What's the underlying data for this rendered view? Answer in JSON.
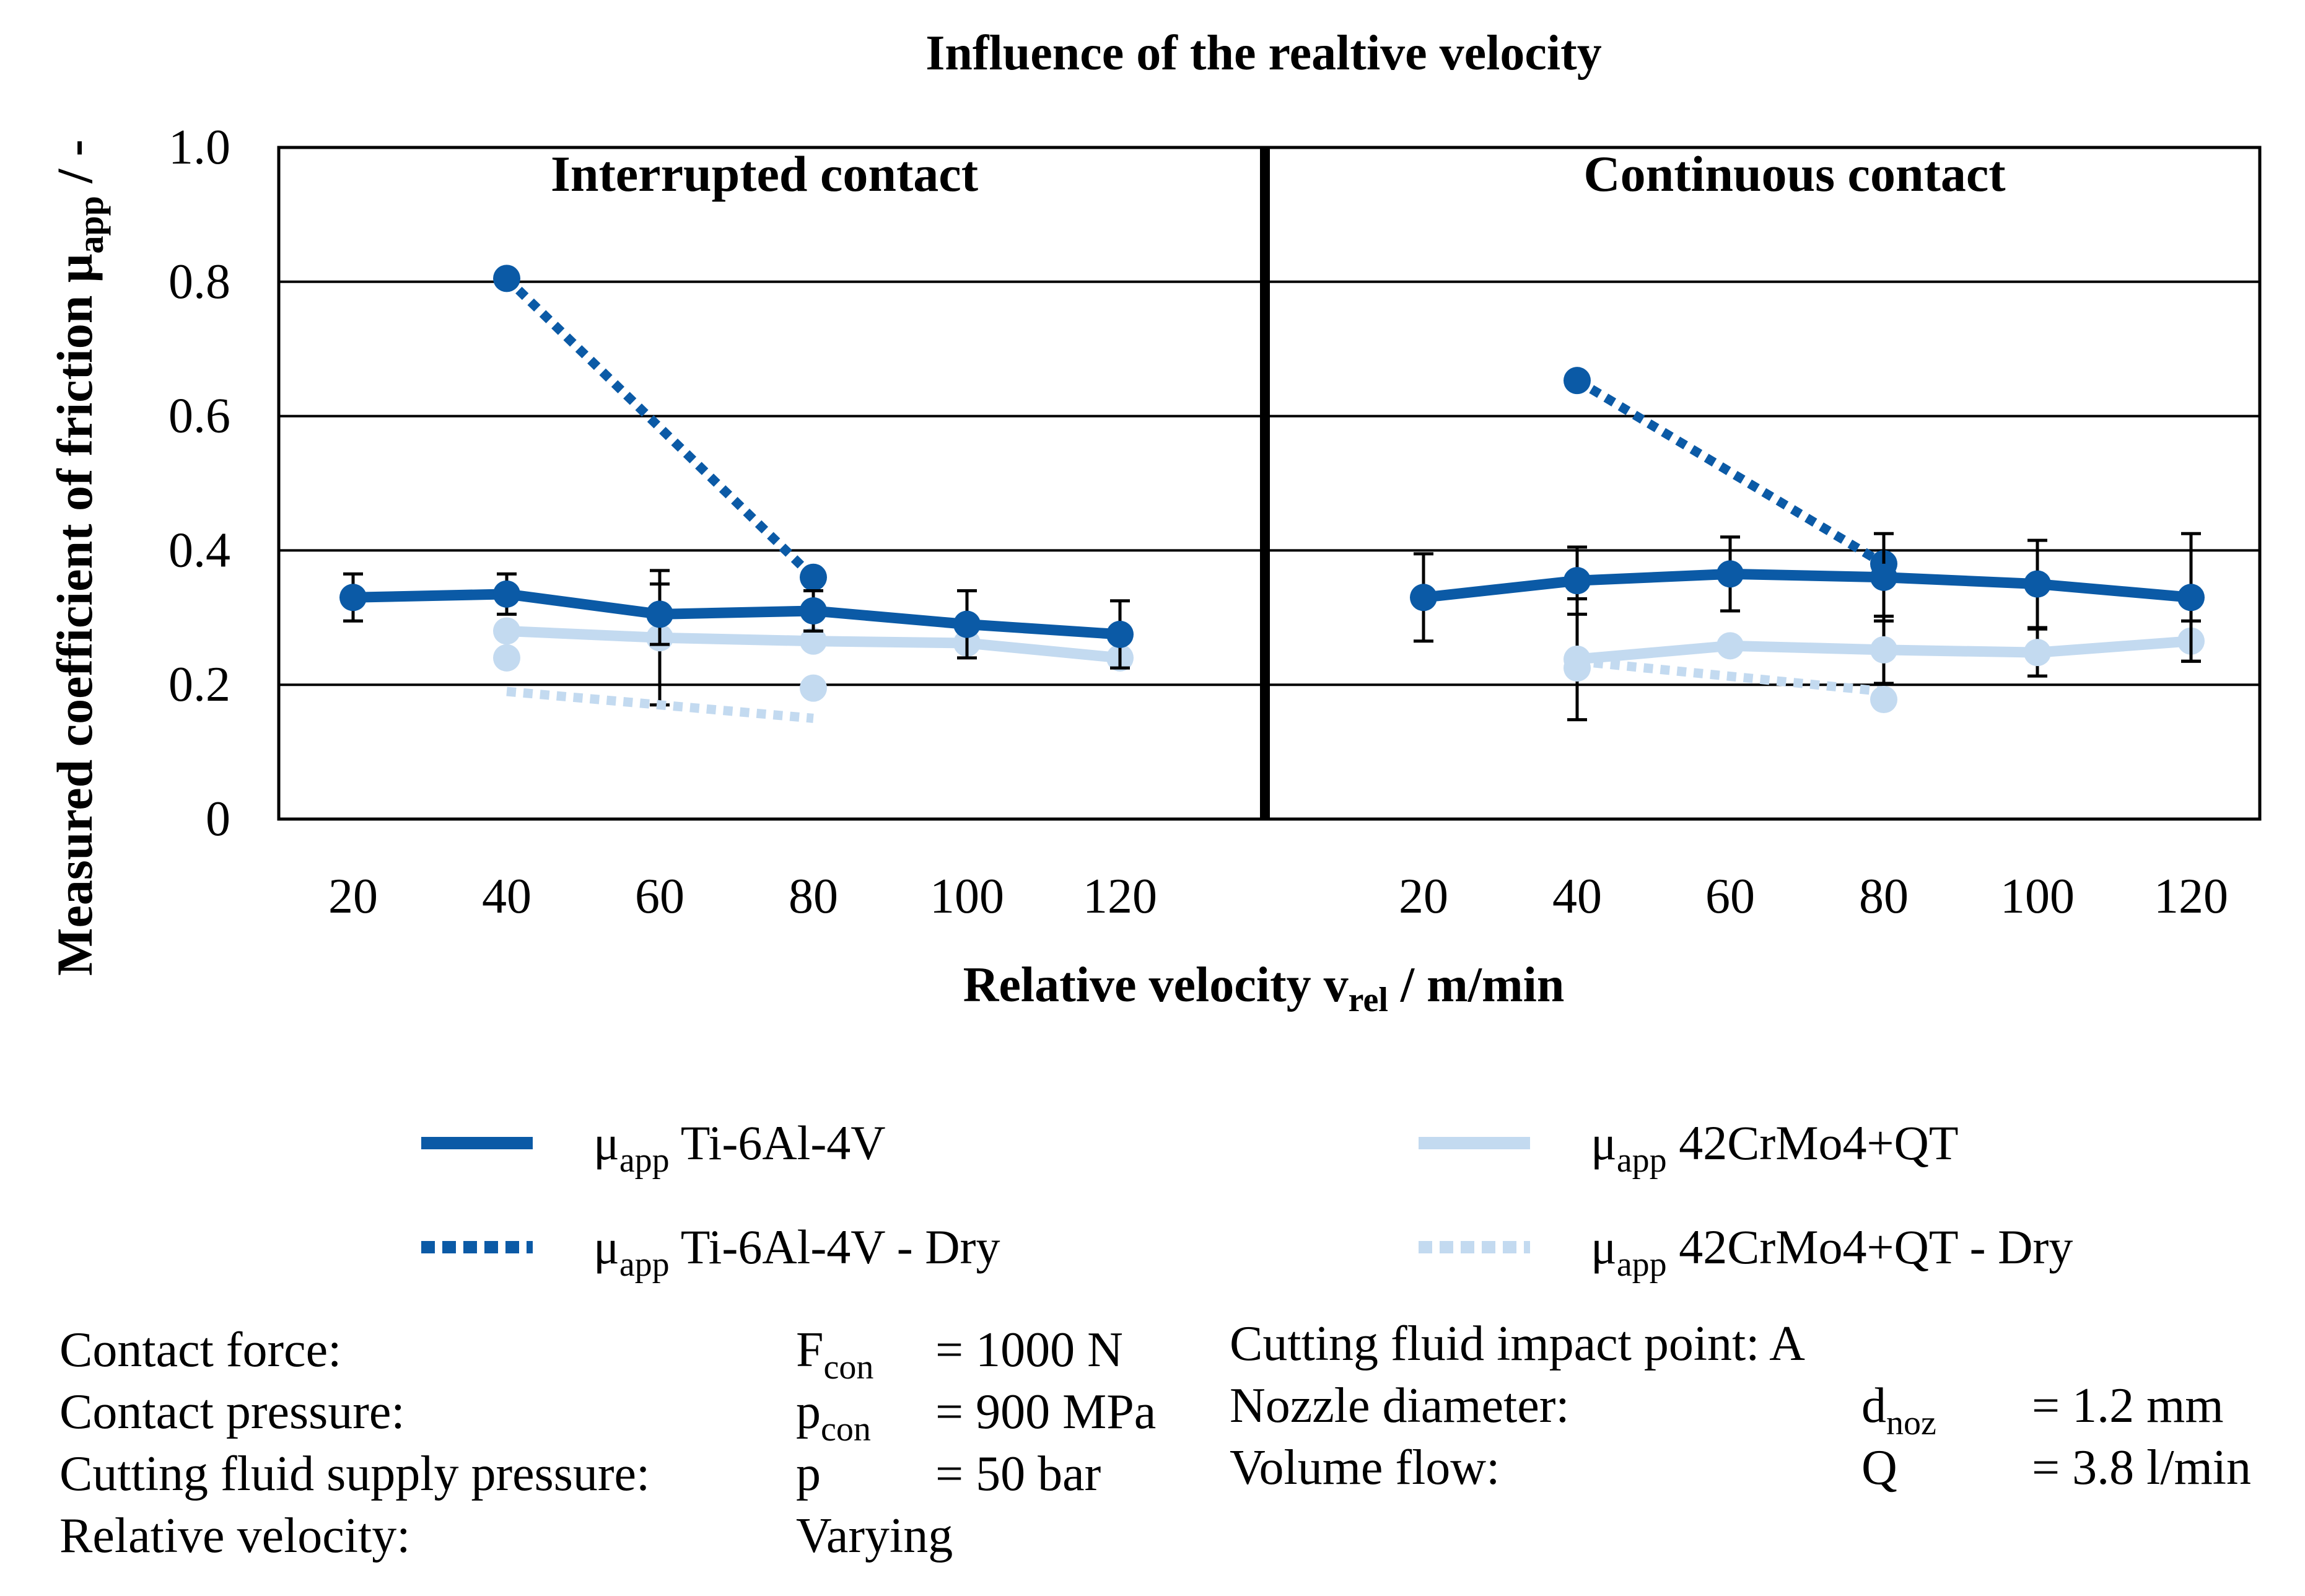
{
  "chart_data": {
    "type": "line",
    "title": "Influence of the realtive velocity",
    "ylabel": "Measured coefficient of friction μ",
    "ylabel_sub": "app",
    "ylabel_suffix": " / -",
    "xlabel": "Relative velocity v",
    "xlabel_sub": "rel",
    "xlabel_suffix": " / m/min",
    "ylim": [
      0,
      1.0
    ],
    "yticks": [
      "0",
      "0.2",
      "0.4",
      "0.6",
      "0.8",
      "1.0"
    ],
    "grid": true,
    "panels": [
      {
        "title": "Interrupted contact",
        "categories": [
          "20",
          "40",
          "60",
          "80",
          "100",
          "120"
        ],
        "series": [
          {
            "name": "μapp Ti-6Al-4V",
            "values": [
              0.33,
              0.335,
              0.305,
              0.31,
              0.29,
              0.275
            ],
            "err": [
              0.035,
              0.03,
              0.045,
              0.03,
              0.05,
              0.05
            ]
          },
          {
            "name": "μapp 42CrMo4+QT",
            "values": [
              null,
              0.28,
              0.27,
              0.265,
              0.262,
              0.24
            ],
            "err": [
              null,
              null,
              0.1,
              null,
              null,
              null
            ]
          },
          {
            "name": "μapp Ti-6Al-4V - Dry",
            "values": [
              null,
              0.805,
              null,
              0.36,
              null,
              null
            ],
            "err": [
              null,
              null,
              null,
              null,
              null,
              null
            ]
          },
          {
            "name": "μapp 42CrMo4+QT - Dry",
            "values": [
              null,
              0.19,
              null,
              0.15,
              null,
              null
            ],
            "points": [
              null,
              0.24,
              null,
              0.195,
              null,
              null
            ],
            "err": [
              null,
              null,
              null,
              null,
              null,
              null
            ]
          }
        ]
      },
      {
        "title": "Continuous contact",
        "categories": [
          "20",
          "40",
          "60",
          "80",
          "100",
          "120"
        ],
        "series": [
          {
            "name": "μapp Ti-6Al-4V",
            "values": [
              0.33,
              0.355,
              0.365,
              0.36,
              0.35,
              0.33
            ],
            "err": [
              0.065,
              0.05,
              0.055,
              0.065,
              0.065,
              0.095
            ]
          },
          {
            "name": "μapp 42CrMo4+QT",
            "values": [
              null,
              0.238,
              0.258,
              0.252,
              0.248,
              0.265
            ],
            "err": [
              null,
              0.09,
              null,
              0.05,
              0.035,
              0.03
            ]
          },
          {
            "name": "μapp Ti-6Al-4V - Dry",
            "values": [
              null,
              0.653,
              null,
              0.38,
              null,
              null
            ],
            "err": [
              null,
              null,
              null,
              null,
              null,
              null
            ]
          },
          {
            "name": "μapp 42CrMo4+QT - Dry",
            "values": [
              null,
              0.235,
              null,
              0.19,
              null,
              null
            ],
            "points": [
              null,
              0.225,
              null,
              0.178,
              null,
              null
            ],
            "err": [
              null,
              null,
              null,
              null,
              null,
              null
            ]
          }
        ]
      }
    ]
  },
  "colors": {
    "dark_blue": "#0b5aa6",
    "light_blue": "#c3daf0",
    "axis": "#000000"
  },
  "legend": [
    {
      "symbol": "μ",
      "sub": "app",
      "text": " Ti-6Al-4V",
      "style": "solid-dark"
    },
    {
      "symbol": "μ",
      "sub": "app",
      "text": " Ti-6Al-4V - Dry",
      "style": "dotted-dark"
    },
    {
      "symbol": "μ",
      "sub": "app",
      "text": " 42CrMo4+QT",
      "style": "solid-light"
    },
    {
      "symbol": "μ",
      "sub": "app",
      "text": " 42CrMo4+QT - Dry",
      "style": "dotted-light"
    }
  ],
  "params_left": [
    {
      "label": "Contact force:",
      "symbol": "F",
      "sub": "con",
      "value": "= 1000 N"
    },
    {
      "label": "Contact pressure:",
      "symbol": "p",
      "sub": "con",
      "value": "= 900 MPa"
    },
    {
      "label": "Cutting fluid supply pressure:",
      "symbol": "p",
      "sub": "",
      "value": "= 50 bar"
    },
    {
      "label": "Relative velocity:",
      "symbol": "Varying",
      "sub": "",
      "value": ""
    }
  ],
  "params_right": [
    {
      "label": "Cutting fluid impact point: A",
      "symbol": "",
      "sub": "",
      "value": ""
    },
    {
      "label": "Nozzle diameter:",
      "symbol": "d",
      "sub": "noz",
      "value": "= 1.2 mm"
    },
    {
      "label": "Volume flow:",
      "symbol": "Q",
      "sub": "",
      "value": "= 3.8 l/min"
    }
  ]
}
